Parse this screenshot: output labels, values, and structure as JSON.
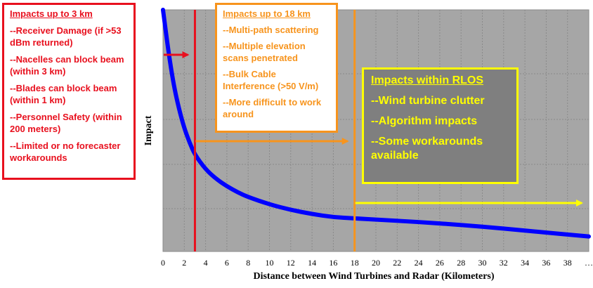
{
  "chart_data": {
    "type": "line",
    "xlabel": "Distance between Wind Turbines and Radar (Kilometers)",
    "ylabel": "Impact",
    "x_ticks": [
      "0",
      "2",
      "4",
      "6",
      "8",
      "10",
      "12",
      "14",
      "16",
      "18",
      "20",
      "22",
      "24",
      "26",
      "28",
      "30",
      "32",
      "34",
      "36",
      "38",
      "…"
    ],
    "xlim": [
      0,
      40
    ],
    "ylim": [
      0,
      10
    ],
    "grid": true,
    "series": [
      {
        "x": [
          0,
          0.5,
          1,
          1.5,
          2,
          2.5,
          3,
          4,
          5,
          6,
          7,
          8,
          10,
          12,
          14,
          16,
          18,
          20,
          24,
          28,
          32,
          36,
          38,
          40
        ],
        "y": [
          10,
          8.3,
          6.9,
          5.9,
          5.1,
          4.5,
          4.0,
          3.4,
          3.0,
          2.7,
          2.45,
          2.25,
          1.95,
          1.72,
          1.55,
          1.42,
          1.37,
          1.32,
          1.22,
          1.1,
          0.95,
          0.78,
          0.7,
          0.62
        ],
        "color": "#0000ff"
      }
    ],
    "markers": [
      {
        "x": 3,
        "color": "#e8101e"
      },
      {
        "x": 18,
        "color": "#f7941d"
      }
    ],
    "arrows": [
      {
        "from": 0,
        "to": 3,
        "color": "#e8101e"
      },
      {
        "from": 3,
        "to": 18,
        "color": "#f7941d"
      },
      {
        "from": 18,
        "to": 40,
        "color": "#ffff00"
      }
    ]
  },
  "boxes": {
    "red": {
      "title": "Impacts up to 3 km",
      "items": [
        "--Receiver Damage (if >53 dBm returned)",
        "--Nacelles can block beam (within 3 km)",
        "--Blades can block beam (within 1 km)",
        "--Personnel Safety (within 200 meters)",
        "--Limited or no forecaster workarounds"
      ],
      "color": "#e8101e"
    },
    "orange": {
      "title": "Impacts up to 18 km",
      "items": [
        "--Multi-path scattering",
        "--Multiple elevation scans penetrated",
        "--Bulk Cable Interference (>50 V/m)",
        "--More difficult to work around"
      ],
      "color": "#f7941d"
    },
    "yellow": {
      "title": "Impacts within RLOS",
      "items": [
        "--Wind turbine clutter",
        "--Algorithm impacts",
        "--Some workarounds available"
      ],
      "color": "#ffff00"
    }
  },
  "colors": {
    "plot_background": "#a6a6a6",
    "yellow_box_background": "#7f7f7f",
    "curve": "#0000ff"
  }
}
